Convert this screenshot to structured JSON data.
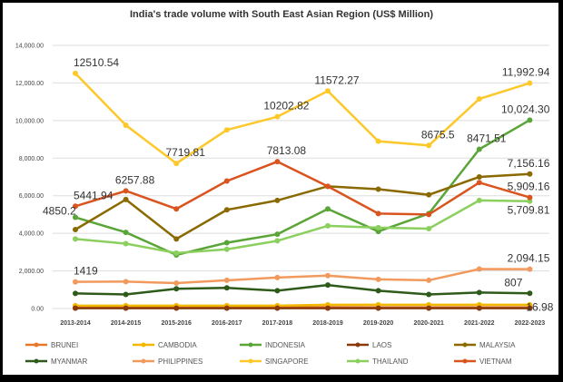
{
  "chart_data": {
    "type": "line",
    "title": "India's trade volume with South East Asian Region (US$ Million)",
    "xlabel": "",
    "ylabel": "",
    "ylim": [
      0,
      14000
    ],
    "yticks": [
      "0.00",
      "2,000.00",
      "4,000.00",
      "6,000.00",
      "8,000.00",
      "10,000.00",
      "12,000.00",
      "14,000.00"
    ],
    "grid": true,
    "legend_position": "bottom",
    "categories": [
      "2013-2014",
      "2014-2015",
      "2015-2016",
      "2016-2017",
      "2017-2018",
      "2018-2019",
      "2019-2020",
      "2020-2021",
      "2021-2022",
      "2022-2023"
    ],
    "series": [
      {
        "name": "BRUNEI",
        "color": "#e8762b",
        "values": [
          60,
          60,
          60,
          60,
          60,
          70,
          60,
          60,
          60,
          60
        ]
      },
      {
        "name": "CAMBODIA",
        "color": "#f2b800",
        "values": [
          150,
          150,
          150,
          150,
          150,
          200,
          200,
          200,
          200,
          200
        ]
      },
      {
        "name": "INDONESIA",
        "color": "#5aa537",
        "values": [
          4850.2,
          4050,
          2850,
          3500,
          3950,
          5300,
          4100,
          5050,
          8471.51,
          10024.3
        ]
      },
      {
        "name": "LAOS",
        "color": "#8a3a0a",
        "values": [
          20,
          20,
          20,
          20,
          20,
          20,
          20,
          20,
          20,
          16.98
        ]
      },
      {
        "name": "MALAYSIA",
        "color": "#8a6a00",
        "values": [
          4200,
          5800,
          3700,
          5250,
          5750,
          6500,
          6350,
          6050,
          7000,
          7156.16
        ]
      },
      {
        "name": "MYANMAR",
        "color": "#2e5a1a",
        "values": [
          800,
          750,
          1050,
          1100,
          950,
          1250,
          950,
          750,
          850,
          807
        ]
      },
      {
        "name": "PHILIPPINES",
        "color": "#f29a5e",
        "values": [
          1419,
          1430,
          1350,
          1500,
          1650,
          1750,
          1550,
          1500,
          2100,
          2094.15
        ]
      },
      {
        "name": "SINGAPORE",
        "color": "#fcc82a",
        "values": [
          12510.54,
          9750,
          7719.81,
          9500,
          10202.82,
          11572.27,
          8900,
          8675.5,
          11150,
          11992.94
        ]
      },
      {
        "name": "THAILAND",
        "color": "#8bcf5e",
        "values": [
          3700,
          3450,
          2950,
          3150,
          3600,
          4400,
          4300,
          4250,
          5750,
          5709.81
        ]
      },
      {
        "name": "VIETNAM",
        "color": "#d9541e",
        "values": [
          5441.94,
          6257.88,
          5300,
          6780,
          7813.08,
          6500,
          5050,
          5000,
          6700,
          5909.16
        ]
      }
    ],
    "annotations": [
      {
        "series": "SINGAPORE",
        "index": 0,
        "text": "12510.54"
      },
      {
        "series": "SINGAPORE",
        "index": 2,
        "text": "7719.81"
      },
      {
        "series": "SINGAPORE",
        "index": 4,
        "text": "10202.82"
      },
      {
        "series": "SINGAPORE",
        "index": 5,
        "text": "11572.27"
      },
      {
        "series": "SINGAPORE",
        "index": 7,
        "text": "8675.5"
      },
      {
        "series": "SINGAPORE",
        "index": 9,
        "text": "11,992.94"
      },
      {
        "series": "INDONESIA",
        "index": 9,
        "text": "10,024.30"
      },
      {
        "series": "INDONESIA",
        "index": 8,
        "text": "8471.51"
      },
      {
        "series": "INDONESIA",
        "index": 0,
        "text": "4850.2"
      },
      {
        "series": "VIETNAM",
        "index": 0,
        "text": "5441.94"
      },
      {
        "series": "VIETNAM",
        "index": 1,
        "text": "6257.88"
      },
      {
        "series": "VIETNAM",
        "index": 4,
        "text": "7813.08"
      },
      {
        "series": "VIETNAM",
        "index": 9,
        "text": "5,909.16"
      },
      {
        "series": "MALAYSIA",
        "index": 9,
        "text": "7,156.16"
      },
      {
        "series": "THAILAND",
        "index": 9,
        "text": "5,709.81"
      },
      {
        "series": "PHILIPPINES",
        "index": 0,
        "text": "1419"
      },
      {
        "series": "PHILIPPINES",
        "index": 9,
        "text": "2,094.15"
      },
      {
        "series": "MYANMAR",
        "index": 9,
        "text": "807"
      },
      {
        "series": "LAOS",
        "index": 9,
        "text": "16.98"
      }
    ]
  }
}
